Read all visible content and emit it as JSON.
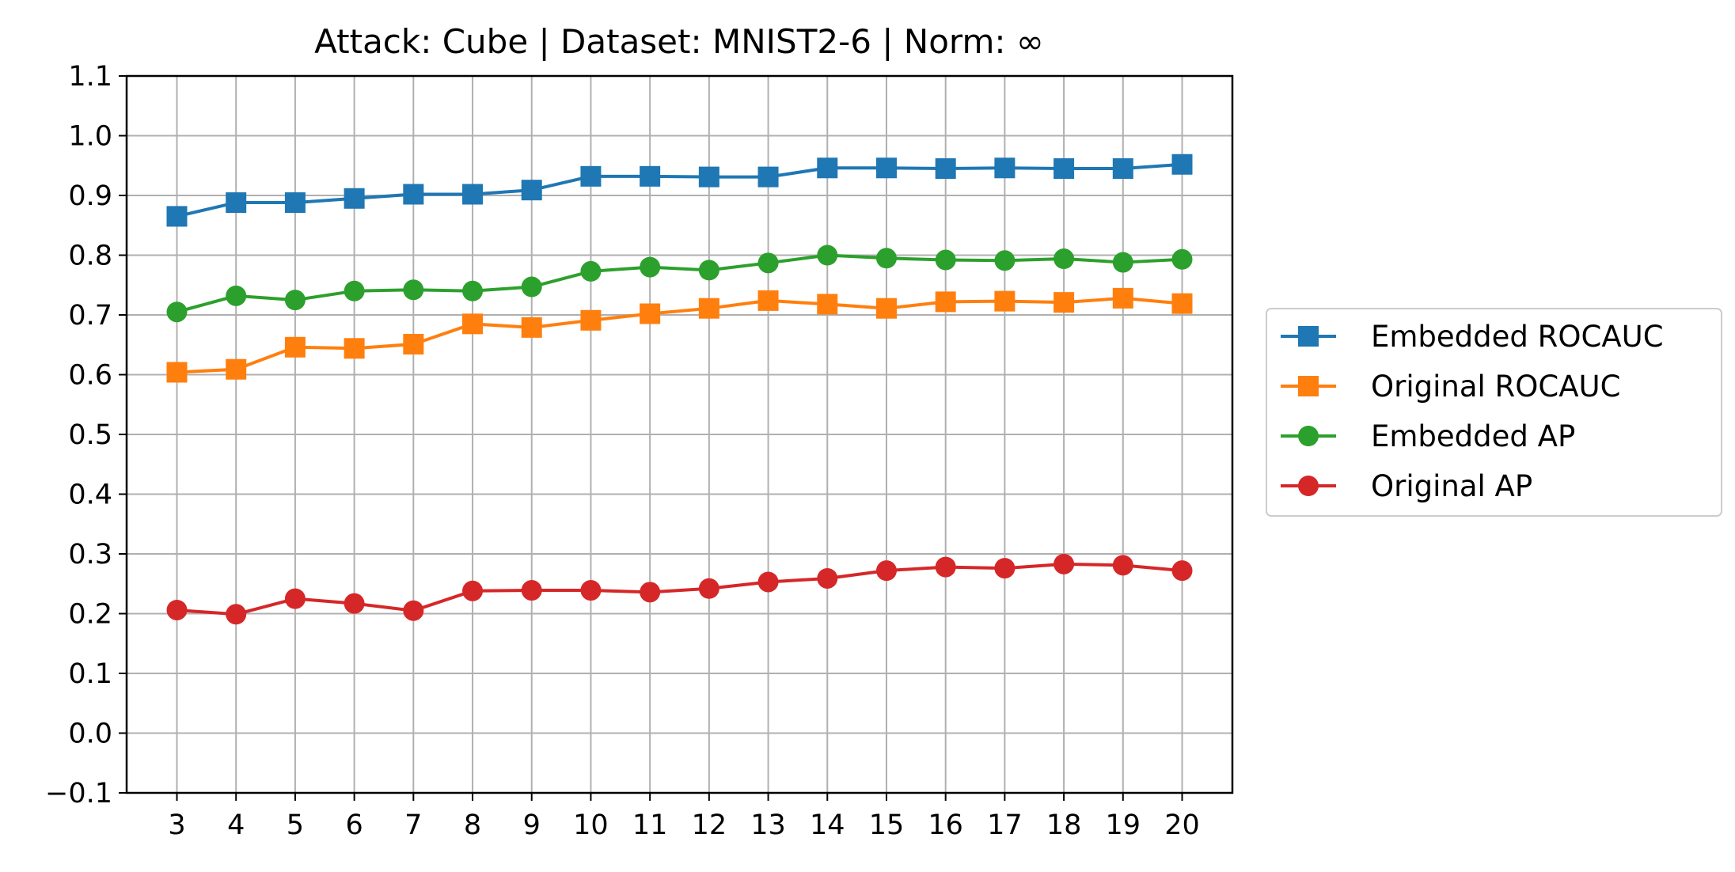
{
  "chart_data": {
    "type": "line",
    "title": "Attack: Cube | Dataset: MNIST2-6 | Norm: ∞",
    "xlabel": "",
    "ylabel": "",
    "x": [
      3,
      4,
      5,
      6,
      7,
      8,
      9,
      10,
      11,
      12,
      13,
      14,
      15,
      16,
      17,
      18,
      19,
      20
    ],
    "xlim": [
      2.15,
      20.85
    ],
    "ylim": [
      -0.1,
      1.1
    ],
    "yticks": [
      -0.1,
      0.0,
      0.1,
      0.2,
      0.3,
      0.4,
      0.5,
      0.6,
      0.7,
      0.8,
      0.9,
      1.0,
      1.1
    ],
    "ytick_labels": [
      "−0.1",
      "0.0",
      "0.1",
      "0.2",
      "0.3",
      "0.4",
      "0.5",
      "0.6",
      "0.7",
      "0.8",
      "0.9",
      "1.0",
      "1.1"
    ],
    "grid": true,
    "legend_position": "right (outside plot)",
    "series": [
      {
        "name": "Embedded ROCAUC",
        "color": "#1f77b4",
        "marker": "square",
        "values": [
          0.865,
          0.888,
          0.888,
          0.895,
          0.902,
          0.902,
          0.909,
          0.932,
          0.932,
          0.931,
          0.931,
          0.946,
          0.946,
          0.945,
          0.946,
          0.945,
          0.945,
          0.952
        ]
      },
      {
        "name": "Original ROCAUC",
        "color": "#ff7f0e",
        "marker": "square",
        "values": [
          0.604,
          0.609,
          0.646,
          0.644,
          0.651,
          0.685,
          0.679,
          0.691,
          0.702,
          0.711,
          0.724,
          0.718,
          0.711,
          0.722,
          0.723,
          0.721,
          0.728,
          0.719
        ]
      },
      {
        "name": "Embedded AP",
        "color": "#2ca02c",
        "marker": "circle",
        "values": [
          0.705,
          0.732,
          0.725,
          0.74,
          0.742,
          0.74,
          0.747,
          0.773,
          0.78,
          0.775,
          0.787,
          0.8,
          0.795,
          0.792,
          0.791,
          0.794,
          0.788,
          0.793
        ]
      },
      {
        "name": "Original AP",
        "color": "#d62728",
        "marker": "circle",
        "values": [
          0.206,
          0.199,
          0.225,
          0.217,
          0.205,
          0.238,
          0.239,
          0.239,
          0.236,
          0.242,
          0.253,
          0.259,
          0.272,
          0.278,
          0.276,
          0.283,
          0.281,
          0.272
        ]
      }
    ]
  }
}
